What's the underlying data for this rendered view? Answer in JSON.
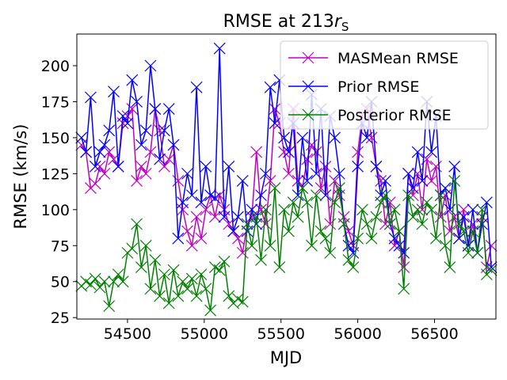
{
  "chart_data": {
    "type": "line",
    "title": "RMSE at 213",
    "title_sub": "r",
    "title_subscript": "S",
    "xlabel": "MJD",
    "ylabel": "RMSE (km/s)",
    "xlim": [
      54170,
      56900
    ],
    "ylim": [
      24,
      222
    ],
    "x_ticks": [
      54500,
      55000,
      55500,
      56000,
      56500
    ],
    "y_ticks": [
      25,
      50,
      75,
      100,
      125,
      150,
      175,
      200
    ],
    "marker": "x",
    "grid": false,
    "legend_position": "top-right",
    "x": [
      54200,
      54230,
      54260,
      54290,
      54320,
      54350,
      54380,
      54410,
      54440,
      54470,
      54500,
      54530,
      54560,
      54590,
      54620,
      54650,
      54680,
      54710,
      54740,
      54770,
      54800,
      54830,
      54860,
      54890,
      54920,
      54950,
      54980,
      55010,
      55040,
      55070,
      55100,
      55130,
      55160,
      55190,
      55220,
      55250,
      55280,
      55310,
      55340,
      55370,
      55400,
      55430,
      55460,
      55490,
      55520,
      55550,
      55580,
      55610,
      55640,
      55670,
      55700,
      55730,
      55760,
      55790,
      55820,
      55850,
      55880,
      55910,
      55940,
      55970,
      56000,
      56030,
      56060,
      56090,
      56120,
      56150,
      56180,
      56210,
      56240,
      56270,
      56300,
      56330,
      56360,
      56390,
      56420,
      56450,
      56480,
      56510,
      56540,
      56570,
      56600,
      56630,
      56660,
      56690,
      56720,
      56750,
      56780,
      56810,
      56840,
      56870
    ],
    "series": [
      {
        "name": "MASMean RMSE",
        "color": "#bf00bf",
        "values": [
          145,
          140,
          115,
          118,
          130,
          125,
          140,
          135,
          130,
          160,
          165,
          170,
          120,
          130,
          125,
          140,
          170,
          155,
          130,
          135,
          145,
          120,
          100,
          85,
          75,
          95,
          80,
          100,
          110,
          95,
          110,
          100,
          90,
          85,
          80,
          70,
          90,
          95,
          140,
          100,
          90,
          120,
          170,
          160,
          140,
          125,
          170,
          120,
          115,
          135,
          145,
          140,
          115,
          130,
          90,
          120,
          110,
          95,
          85,
          75,
          140,
          165,
          170,
          150,
          130,
          120,
          90,
          105,
          75,
          85,
          60,
          125,
          110,
          125,
          100,
          135,
          120,
          130,
          95,
          110,
          85,
          95,
          80,
          100,
          75,
          90,
          70,
          95,
          60,
          75
        ]
      },
      {
        "name": "Prior RMSE",
        "color": "#0000ff",
        "values": [
          150,
          140,
          178,
          130,
          140,
          145,
          155,
          182,
          130,
          165,
          160,
          190,
          175,
          145,
          155,
          200,
          170,
          135,
          155,
          170,
          145,
          80,
          105,
          125,
          110,
          185,
          105,
          130,
          110,
          108,
          212,
          95,
          130,
          85,
          95,
          120,
          85,
          100,
          90,
          110,
          125,
          185,
          160,
          190,
          150,
          140,
          160,
          110,
          150,
          120,
          180,
          125,
          170,
          110,
          165,
          150,
          125,
          90,
          75,
          70,
          130,
          160,
          150,
          175,
          130,
          110,
          120,
          90,
          80,
          75,
          70,
          125,
          115,
          140,
          120,
          175,
          140,
          165,
          110,
          115,
          100,
          130,
          80,
          95,
          75,
          100,
          70,
          90,
          105,
          60
        ]
      },
      {
        "name": "Posterior RMSE",
        "color": "#008000",
        "values": [
          47,
          50,
          48,
          52,
          46,
          50,
          33,
          50,
          55,
          50,
          70,
          73,
          90,
          60,
          75,
          45,
          65,
          40,
          55,
          35,
          58,
          40,
          50,
          45,
          52,
          40,
          55,
          45,
          30,
          60,
          58,
          64,
          40,
          35,
          38,
          36,
          90,
          75,
          95,
          65,
          100,
          75,
          115,
          60,
          100,
          85,
          105,
          95,
          115,
          105,
          75,
          110,
          85,
          80,
          70,
          105,
          115,
          90,
          65,
          60,
          80,
          100,
          90,
          80,
          95,
          105,
          110,
          90,
          100,
          85,
          45,
          110,
          95,
          100,
          90,
          105,
          100,
          80,
          110,
          75,
          60,
          120,
          90,
          85,
          70,
          85,
          70,
          100,
          55,
          58
        ]
      }
    ]
  }
}
